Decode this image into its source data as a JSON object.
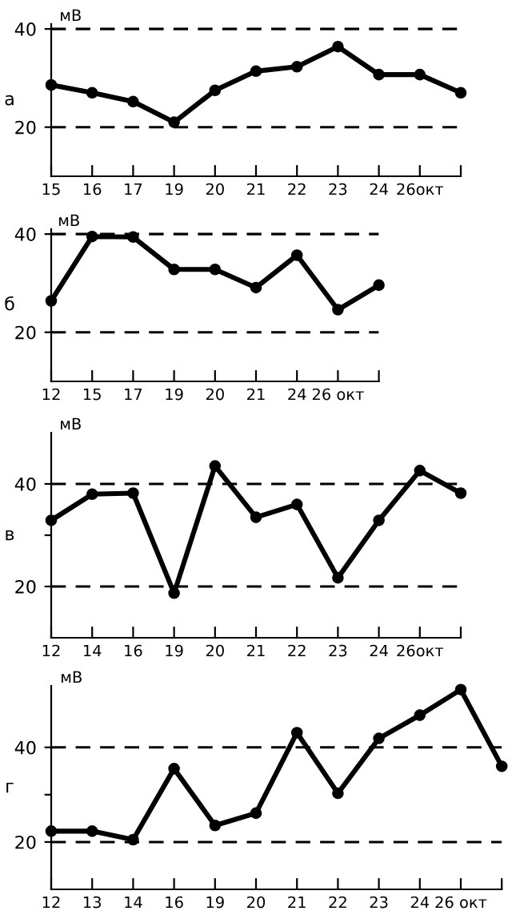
{
  "chart_data": [
    {
      "type": "line",
      "ylabel": "мВ",
      "annotations": [
        "а"
      ],
      "categories": [
        "15",
        "16",
        "17",
        "19",
        "20",
        "21",
        "22",
        "23",
        "24",
        "26окт",
        null
      ],
      "values": [
        28.6,
        27,
        25.2,
        21,
        27.5,
        31.4,
        32.3,
        36.4,
        30.7,
        30.7,
        27
      ],
      "color": "#000000",
      "marker": "circle",
      "line_style": "solid",
      "ylim": [
        10,
        41
      ],
      "yticks": [
        20,
        40
      ],
      "ref_lines": [
        {
          "axis": "y",
          "value": 20,
          "line_style": "dashed"
        },
        {
          "axis": "y",
          "value": 40,
          "line_style": "dashed"
        }
      ]
    },
    {
      "type": "line",
      "ylabel": "мВ",
      "annotations": [
        "б"
      ],
      "categories": [
        "12",
        "15",
        "17",
        "19",
        "20",
        "21",
        "24",
        "26 окт",
        null
      ],
      "values": [
        26.4,
        39.5,
        39.4,
        32.8,
        32.8,
        29.1,
        35.7,
        24.6,
        29.6
      ],
      "color": "#000000",
      "marker": "circle",
      "line_style": "solid",
      "ylim": [
        10,
        41
      ],
      "yticks": [
        20,
        40
      ],
      "ref_lines": [
        {
          "axis": "y",
          "value": 20,
          "line_style": "dashed"
        },
        {
          "axis": "y",
          "value": 40,
          "line_style": "dashed"
        }
      ]
    },
    {
      "type": "line",
      "ylabel": "мВ",
      "annotations": [
        "в"
      ],
      "categories": [
        "12",
        "14",
        "16",
        "19",
        "20",
        "21",
        "22",
        "23",
        "24",
        "26окт",
        null
      ],
      "values": [
        32.9,
        38,
        38.2,
        18.7,
        43.5,
        33.5,
        36,
        21.7,
        32.9,
        42.6,
        38.2
      ],
      "color": "#000000",
      "marker": "circle",
      "line_style": "solid",
      "ylim": [
        10,
        50
      ],
      "yticks": [
        20,
        {
          "value": 30,
          "label": null
        },
        40
      ],
      "ref_lines": [
        {
          "axis": "y",
          "value": 20,
          "line_style": "dashed"
        },
        {
          "axis": "y",
          "value": 40,
          "line_style": "dashed"
        }
      ]
    },
    {
      "type": "line",
      "ylabel": "мВ",
      "annotations": [
        "г"
      ],
      "categories": [
        "12",
        "13",
        "14",
        "16",
        "19",
        "20",
        "21",
        "22",
        "23",
        "24",
        "26 окт",
        null
      ],
      "values": [
        22.3,
        22.3,
        20.5,
        35.5,
        23.5,
        26.1,
        43.1,
        30.3,
        41.9,
        46.8,
        52.2,
        36
      ],
      "color": "#000000",
      "marker": "circle",
      "line_style": "solid",
      "ylim": [
        10,
        53
      ],
      "yticks": [
        20,
        {
          "value": 30,
          "label": null
        },
        40
      ],
      "ref_lines": [
        {
          "axis": "y",
          "value": 20,
          "line_style": "dashed"
        },
        {
          "axis": "y",
          "value": 40,
          "line_style": "dashed"
        }
      ]
    }
  ]
}
